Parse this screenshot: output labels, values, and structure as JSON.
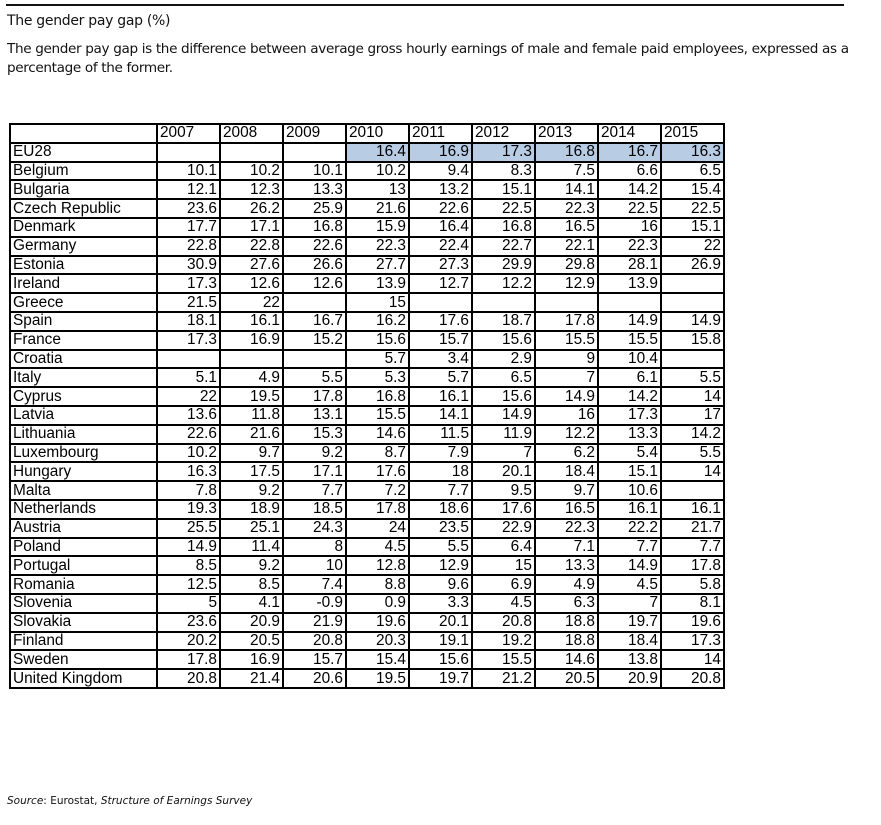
{
  "title": "The gender pay gap (%)",
  "description": "The gender pay gap is the difference between average gross hourly earnings of male and female paid employees, expressed as a percentage of the former.",
  "source": {
    "label": "Source",
    "separator": ": ",
    "publisher": "Eurostat, ",
    "survey": "Structure of Earnings Survey"
  },
  "highlight_color": "#b8cce4",
  "table": {
    "columns": [
      "2007",
      "2008",
      "2009",
      "2010",
      "2011",
      "2012",
      "2013",
      "2014",
      "2015"
    ],
    "rows": [
      {
        "country": "EU28",
        "values": [
          "",
          "",
          "",
          "16.4",
          "16.9",
          "17.3",
          "16.8",
          "16.7",
          "16.3"
        ]
      },
      {
        "country": "Belgium",
        "values": [
          "10.1",
          "10.2",
          "10.1",
          "10.2",
          "9.4",
          "8.3",
          "7.5",
          "6.6",
          "6.5"
        ]
      },
      {
        "country": "Bulgaria",
        "values": [
          "12.1",
          "12.3",
          "13.3",
          "13",
          "13.2",
          "15.1",
          "14.1",
          "14.2",
          "15.4"
        ]
      },
      {
        "country": "Czech Republic",
        "values": [
          "23.6",
          "26.2",
          "25.9",
          "21.6",
          "22.6",
          "22.5",
          "22.3",
          "22.5",
          "22.5"
        ]
      },
      {
        "country": "Denmark",
        "values": [
          "17.7",
          "17.1",
          "16.8",
          "15.9",
          "16.4",
          "16.8",
          "16.5",
          "16",
          "15.1"
        ]
      },
      {
        "country": "Germany",
        "values": [
          "22.8",
          "22.8",
          "22.6",
          "22.3",
          "22.4",
          "22.7",
          "22.1",
          "22.3",
          "22"
        ]
      },
      {
        "country": "Estonia",
        "values": [
          "30.9",
          "27.6",
          "26.6",
          "27.7",
          "27.3",
          "29.9",
          "29.8",
          "28.1",
          "26.9"
        ]
      },
      {
        "country": "Ireland",
        "values": [
          "17.3",
          "12.6",
          "12.6",
          "13.9",
          "12.7",
          "12.2",
          "12.9",
          "13.9",
          ""
        ]
      },
      {
        "country": "Greece",
        "values": [
          "21.5",
          "22",
          "",
          "15",
          "",
          "",
          "",
          "",
          ""
        ]
      },
      {
        "country": "Spain",
        "values": [
          "18.1",
          "16.1",
          "16.7",
          "16.2",
          "17.6",
          "18.7",
          "17.8",
          "14.9",
          "14.9"
        ]
      },
      {
        "country": "France",
        "values": [
          "17.3",
          "16.9",
          "15.2",
          "15.6",
          "15.7",
          "15.6",
          "15.5",
          "15.5",
          "15.8"
        ]
      },
      {
        "country": "Croatia",
        "values": [
          "",
          "",
          "",
          "5.7",
          "3.4",
          "2.9",
          "9",
          "10.4",
          ""
        ]
      },
      {
        "country": "Italy",
        "values": [
          "5.1",
          "4.9",
          "5.5",
          "5.3",
          "5.7",
          "6.5",
          "7",
          "6.1",
          "5.5"
        ]
      },
      {
        "country": "Cyprus",
        "values": [
          "22",
          "19.5",
          "17.8",
          "16.8",
          "16.1",
          "15.6",
          "14.9",
          "14.2",
          "14"
        ]
      },
      {
        "country": "Latvia",
        "values": [
          "13.6",
          "11.8",
          "13.1",
          "15.5",
          "14.1",
          "14.9",
          "16",
          "17.3",
          "17"
        ]
      },
      {
        "country": "Lithuania",
        "values": [
          "22.6",
          "21.6",
          "15.3",
          "14.6",
          "11.5",
          "11.9",
          "12.2",
          "13.3",
          "14.2"
        ]
      },
      {
        "country": "Luxembourg",
        "values": [
          "10.2",
          "9.7",
          "9.2",
          "8.7",
          "7.9",
          "7",
          "6.2",
          "5.4",
          "5.5"
        ]
      },
      {
        "country": "Hungary",
        "values": [
          "16.3",
          "17.5",
          "17.1",
          "17.6",
          "18",
          "20.1",
          "18.4",
          "15.1",
          "14"
        ]
      },
      {
        "country": "Malta",
        "values": [
          "7.8",
          "9.2",
          "7.7",
          "7.2",
          "7.7",
          "9.5",
          "9.7",
          "10.6",
          ""
        ]
      },
      {
        "country": "Netherlands",
        "values": [
          "19.3",
          "18.9",
          "18.5",
          "17.8",
          "18.6",
          "17.6",
          "16.5",
          "16.1",
          "16.1"
        ]
      },
      {
        "country": "Austria",
        "values": [
          "25.5",
          "25.1",
          "24.3",
          "24",
          "23.5",
          "22.9",
          "22.3",
          "22.2",
          "21.7"
        ]
      },
      {
        "country": "Poland",
        "values": [
          "14.9",
          "11.4",
          "8",
          "4.5",
          "5.5",
          "6.4",
          "7.1",
          "7.7",
          "7.7"
        ]
      },
      {
        "country": "Portugal",
        "values": [
          "8.5",
          "9.2",
          "10",
          "12.8",
          "12.9",
          "15",
          "13.3",
          "14.9",
          "17.8"
        ]
      },
      {
        "country": "Romania",
        "values": [
          "12.5",
          "8.5",
          "7.4",
          "8.8",
          "9.6",
          "6.9",
          "4.9",
          "4.5",
          "5.8"
        ]
      },
      {
        "country": "Slovenia",
        "values": [
          "5",
          "4.1",
          "-0.9",
          "0.9",
          "3.3",
          "4.5",
          "6.3",
          "7",
          "8.1"
        ]
      },
      {
        "country": "Slovakia",
        "values": [
          "23.6",
          "20.9",
          "21.9",
          "19.6",
          "20.1",
          "20.8",
          "18.8",
          "19.7",
          "19.6"
        ]
      },
      {
        "country": "Finland",
        "values": [
          "20.2",
          "20.5",
          "20.8",
          "20.3",
          "19.1",
          "19.2",
          "18.8",
          "18.4",
          "17.3"
        ]
      },
      {
        "country": "Sweden",
        "values": [
          "17.8",
          "16.9",
          "15.7",
          "15.4",
          "15.6",
          "15.5",
          "14.6",
          "13.8",
          "14"
        ]
      },
      {
        "country": "United Kingdom",
        "values": [
          "20.8",
          "21.4",
          "20.6",
          "19.5",
          "19.7",
          "21.2",
          "20.5",
          "20.9",
          "20.8"
        ]
      }
    ]
  }
}
